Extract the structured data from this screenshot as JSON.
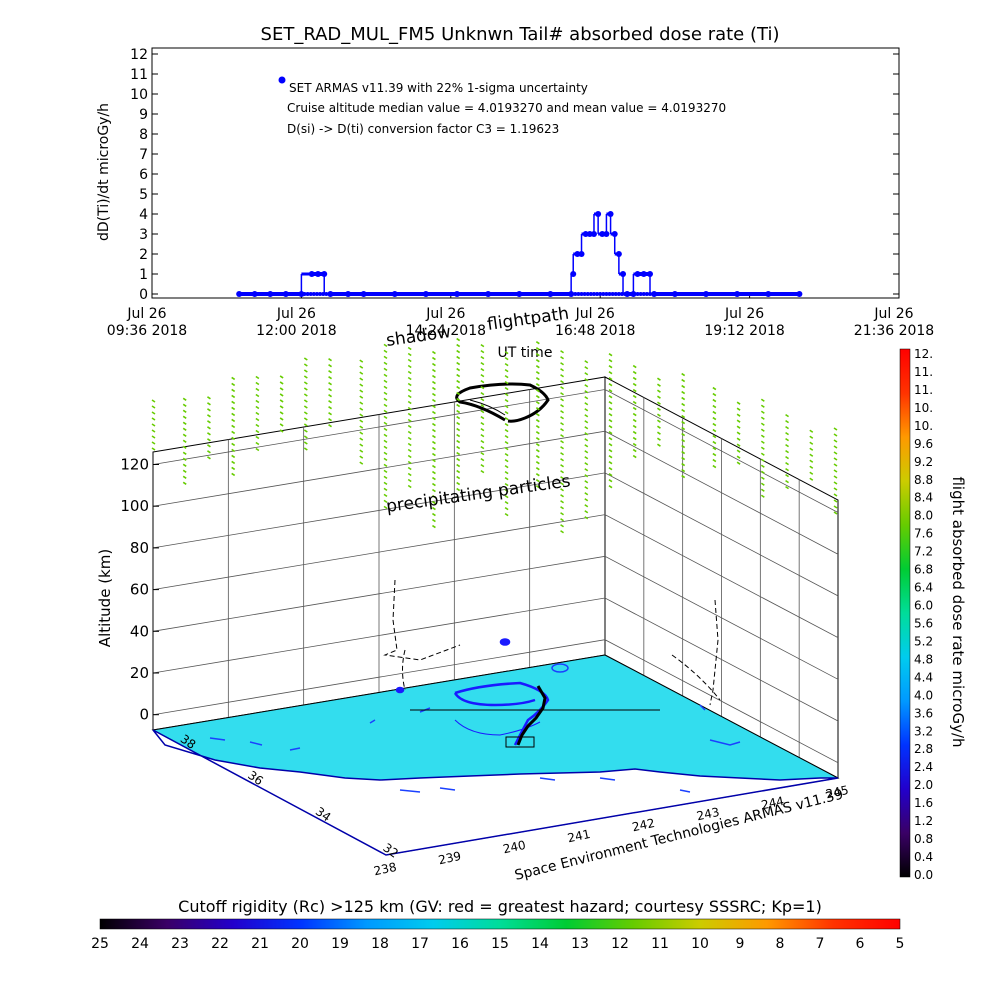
{
  "title": "SET_RAD_MUL_FM5 Unknwn Tail#  absorbed dose rate (Ti)",
  "top_chart": {
    "ylabel": "dD(Ti)/dt microGy/h",
    "xlabel": "UT time",
    "annotations": [
      "SET ARMAS v11.39 with 22% 1-sigma uncertainty",
      "Cruise altitude median value = 4.0193270 and mean value = 4.0193270",
      "D(si) -> D(ti) conversion factor C3 = 1.19623"
    ]
  },
  "chart_data": [
    {
      "type": "scatter",
      "title": "SET_RAD_MUL_FM5 Unknwn Tail#  absorbed dose rate (Ti)",
      "xlabel": "UT time",
      "ylabel": "dD(Ti)/dt microGy/h",
      "x_ticks": [
        {
          "day": "Jul 26",
          "line2": "09:36 2018"
        },
        {
          "day": "Jul 26",
          "line2": "12:00 2018"
        },
        {
          "day": "Jul 26",
          "line2": "14:24 2018"
        },
        {
          "day": "Jul 26",
          "line2": "16:48 2018"
        },
        {
          "day": "Jul 26",
          "line2": "19:12 2018"
        },
        {
          "day": "Jul 26",
          "line2": "21:36 2018"
        }
      ],
      "xlim": [
        "2018-07-26 09:36",
        "2018-07-26 21:36"
      ],
      "ylim": [
        0,
        12
      ],
      "y_ticks": [
        "0",
        "1",
        "2",
        "3",
        "4",
        "5",
        "6",
        "7",
        "8",
        "9",
        "10",
        "11",
        "12"
      ],
      "series": [
        {
          "points": [
            [
              "11:00",
              0
            ],
            [
              "11:15",
              0
            ],
            [
              "11:30",
              0
            ],
            [
              "11:45",
              0
            ],
            [
              "12:00",
              0
            ],
            [
              "12:10",
              1
            ],
            [
              "12:16",
              1
            ],
            [
              "12:22",
              1
            ],
            [
              "12:28",
              0
            ],
            [
              "12:45",
              0
            ],
            [
              "13:00",
              0
            ],
            [
              "13:30",
              0
            ],
            [
              "14:00",
              0
            ],
            [
              "14:30",
              0
            ],
            [
              "15:00",
              0
            ],
            [
              "15:30",
              0
            ],
            [
              "16:00",
              0
            ],
            [
              "16:20",
              0
            ],
            [
              "16:22",
              1
            ],
            [
              "16:26",
              2
            ],
            [
              "16:30",
              2
            ],
            [
              "16:34",
              3
            ],
            [
              "16:38",
              3
            ],
            [
              "16:42",
              3
            ],
            [
              "16:46",
              4
            ],
            [
              "16:50",
              3
            ],
            [
              "16:54",
              3
            ],
            [
              "16:58",
              4
            ],
            [
              "17:02",
              3
            ],
            [
              "17:06",
              2
            ],
            [
              "17:10",
              1
            ],
            [
              "17:14",
              0
            ],
            [
              "17:20",
              0
            ],
            [
              "17:24",
              1
            ],
            [
              "17:30",
              1
            ],
            [
              "17:36",
              1
            ],
            [
              "17:40",
              0
            ],
            [
              "18:00",
              0
            ],
            [
              "18:30",
              0
            ],
            [
              "19:00",
              0
            ],
            [
              "19:30",
              0
            ],
            [
              "20:00",
              0
            ]
          ]
        }
      ],
      "legend": {
        "label": "SET ARMAS v11.39 with 22% 1-sigma uncertainty",
        "placement": "top-left"
      },
      "grid": false,
      "point_color": "#0000ff"
    },
    {
      "type": "scatter",
      "zlabel": "Altitude (km)",
      "z_ticks": [
        "0",
        "20",
        "40",
        "60",
        "80",
        "100",
        "120"
      ],
      "zlim": [
        0,
        120
      ],
      "lat_ticks": [
        "32",
        "34",
        "36",
        "38"
      ],
      "lon_ticks": [
        "238",
        "239",
        "240",
        "241",
        "242",
        "243",
        "244",
        "245"
      ],
      "annotations": [
        "shadow",
        "flightpath",
        "precipitating particles"
      ],
      "credit": "Space Environment Technologies ARMAS v11.39",
      "grid": true,
      "series": [
        {
          "name": "flightpath",
          "color": "#000000"
        },
        {
          "name": "shadow",
          "color": "#0000ff"
        },
        {
          "name": "precipitating particles",
          "color": "#66cc00"
        }
      ]
    }
  ],
  "colorbar_right": {
    "label": "flight absorbed dose rate microGy/h",
    "ticks": [
      "0.0",
      "0.4",
      "0.8",
      "1.2",
      "1.6",
      "2.0",
      "2.4",
      "2.8",
      "3.2",
      "3.6",
      "4.0",
      "4.4",
      "4.8",
      "5.2",
      "5.6",
      "6.0",
      "6.4",
      "6.8",
      "7.2",
      "7.6",
      "8.0",
      "8.4",
      "8.8",
      "9.2",
      "9.6",
      "10.",
      "10.",
      "11.",
      "11.",
      "12."
    ],
    "colors": [
      "#000000",
      "#3a0066",
      "#2200cc",
      "#0033ff",
      "#0099ff",
      "#00ccee",
      "#00dd99",
      "#00cc33",
      "#66cc00",
      "#cccc00",
      "#ff9900",
      "#ff3300",
      "#ff0000"
    ]
  },
  "colorbar_bottom": {
    "label": "Cutoff rigidity (Rc) >125 km (GV: red = greatest hazard; courtesy SSSRC; Kp=1)",
    "ticks": [
      "25",
      "24",
      "23",
      "22",
      "21",
      "20",
      "19",
      "18",
      "17",
      "16",
      "15",
      "14",
      "13",
      "12",
      "11",
      "10",
      "9",
      "8",
      "7",
      "6",
      "5"
    ],
    "colors": [
      "#000000",
      "#3a0066",
      "#2200cc",
      "#0033ff",
      "#0099ff",
      "#00ccee",
      "#00dd99",
      "#00cc33",
      "#66cc00",
      "#cccc00",
      "#ff9900",
      "#ff3300",
      "#ff0000"
    ]
  }
}
